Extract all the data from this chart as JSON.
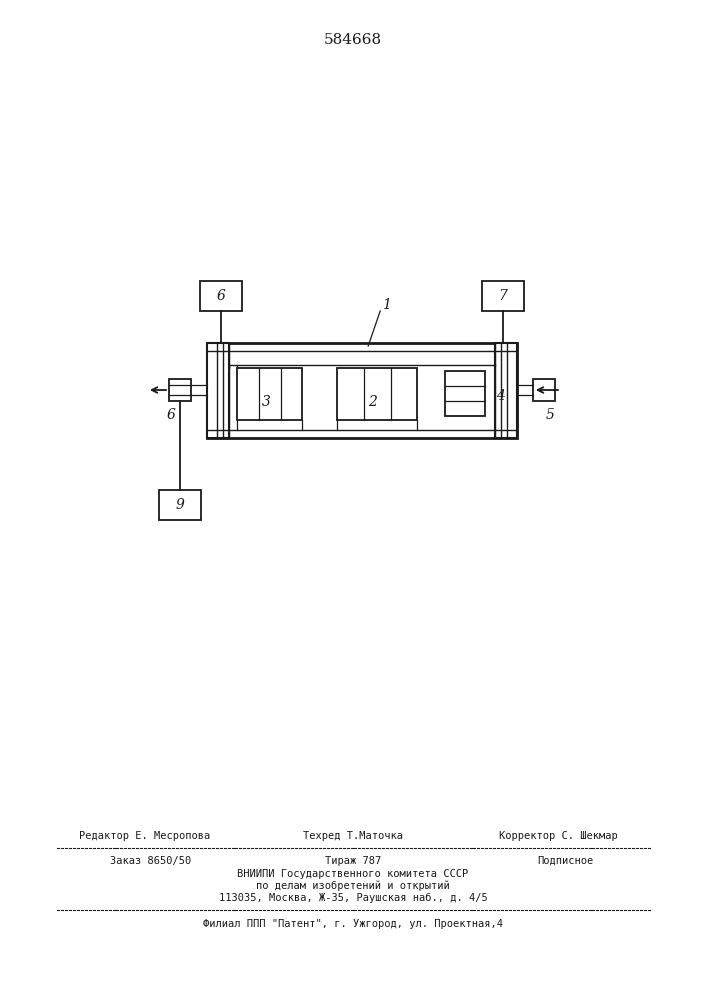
{
  "patent_number": "584668",
  "bg_color": "#ffffff",
  "line_color": "#1a1a1a",
  "editor_line1": "Редактор Е. Месропова",
  "editor_line2": "Техред Т.Маточка",
  "editor_line3": "Корректор С. Шекмар",
  "order_line": "Заказ 8650/50",
  "tirazh_line": "Тираж 787",
  "podpisnoe_line": "Подписное",
  "vniip_line1": "ВНИИПИ Государственного комитета СССР",
  "vniip_line2": "по делам изобретений и открытий",
  "vniip_line3": "113035, Москва, Ж-35, Раушская наб., д. 4/5",
  "filial_line": "Филиал ППП \"Патент\", г. Ужгород, ул. Проектная,4"
}
